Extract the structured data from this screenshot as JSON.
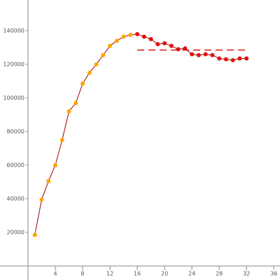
{
  "chart_data": {
    "type": "line",
    "x": [
      1,
      2,
      3,
      4,
      5,
      6,
      7,
      8,
      9,
      10,
      11,
      12,
      13,
      14,
      15,
      16,
      17,
      18,
      19,
      20,
      21,
      22,
      23,
      24,
      25,
      26,
      27,
      28,
      29,
      30,
      31,
      32
    ],
    "values": [
      18500,
      39500,
      50500,
      60000,
      75000,
      92000,
      97000,
      108500,
      115000,
      120000,
      125500,
      131000,
      134000,
      136500,
      137500,
      138000,
      136500,
      135000,
      132000,
      132500,
      131000,
      129000,
      129500,
      126000,
      125500,
      126000,
      125500,
      123500,
      123000,
      122500,
      123500,
      123500
    ],
    "color": "#a00000",
    "point_colors": [
      "#ffa500",
      "#ffa500",
      "#ffa500",
      "#ffa500",
      "#ffa500",
      "#ffa500",
      "#ffa500",
      "#ffa500",
      "#ffa500",
      "#ffa500",
      "#ffa500",
      "#ffa500",
      "#ffa500",
      "#ffa500",
      "#ffa500",
      "#e01010",
      "#e01010",
      "#e01010",
      "#e01010",
      "#e01010",
      "#e01010",
      "#e01010",
      "#e01010",
      "#e01010",
      "#e01010",
      "#e01010",
      "#e01010",
      "#e01010",
      "#e01010",
      "#e01010",
      "#e01010",
      "#e01010"
    ],
    "hline": {
      "value": 128500,
      "xmin": 16,
      "xmax": 32,
      "color": "#e01010"
    },
    "xlim": [
      -4.1,
      36.9
    ],
    "ylim": [
      0,
      158300
    ],
    "xticks": [
      4,
      8,
      12,
      16,
      20,
      24,
      28,
      32,
      36
    ],
    "yticks": [
      20000,
      40000,
      60000,
      80000,
      100000,
      120000,
      140000
    ]
  }
}
